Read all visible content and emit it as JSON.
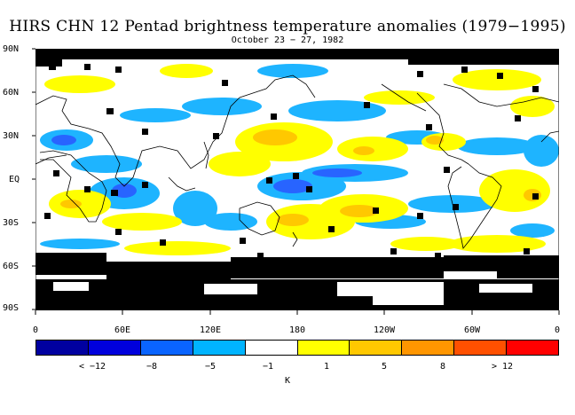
{
  "title": "HIRS CHN 12 Pentad brightness temperature anomalies (1979−1995)",
  "subtitle": "October 23 − 27, 1982",
  "lat_labels": [
    "90N",
    "60N",
    "30N",
    "EQ",
    "30S",
    "60S",
    "90S"
  ],
  "lon_labels": [
    "0",
    "60E",
    "120E",
    "180",
    "120W",
    "60W",
    "0"
  ],
  "colorbar": {
    "colors": [
      "#0000a0",
      "#0000dc",
      "#0a64ff",
      "#00b4ff",
      "#ffffff",
      "#ffff00",
      "#ffc800",
      "#ff9600",
      "#ff5000",
      "#ff0000"
    ],
    "labels": [
      "< −12",
      "−8",
      "−5",
      "−1",
      "1",
      "5",
      "8",
      "> 12"
    ],
    "unit": "K"
  },
  "palette": {
    "missing": "#000000",
    "cold_strong": "#2864ff",
    "cold": "#1eb4ff",
    "warm": "#ffff00",
    "warm_strong": "#ffc800",
    "coast": "#000000"
  }
}
